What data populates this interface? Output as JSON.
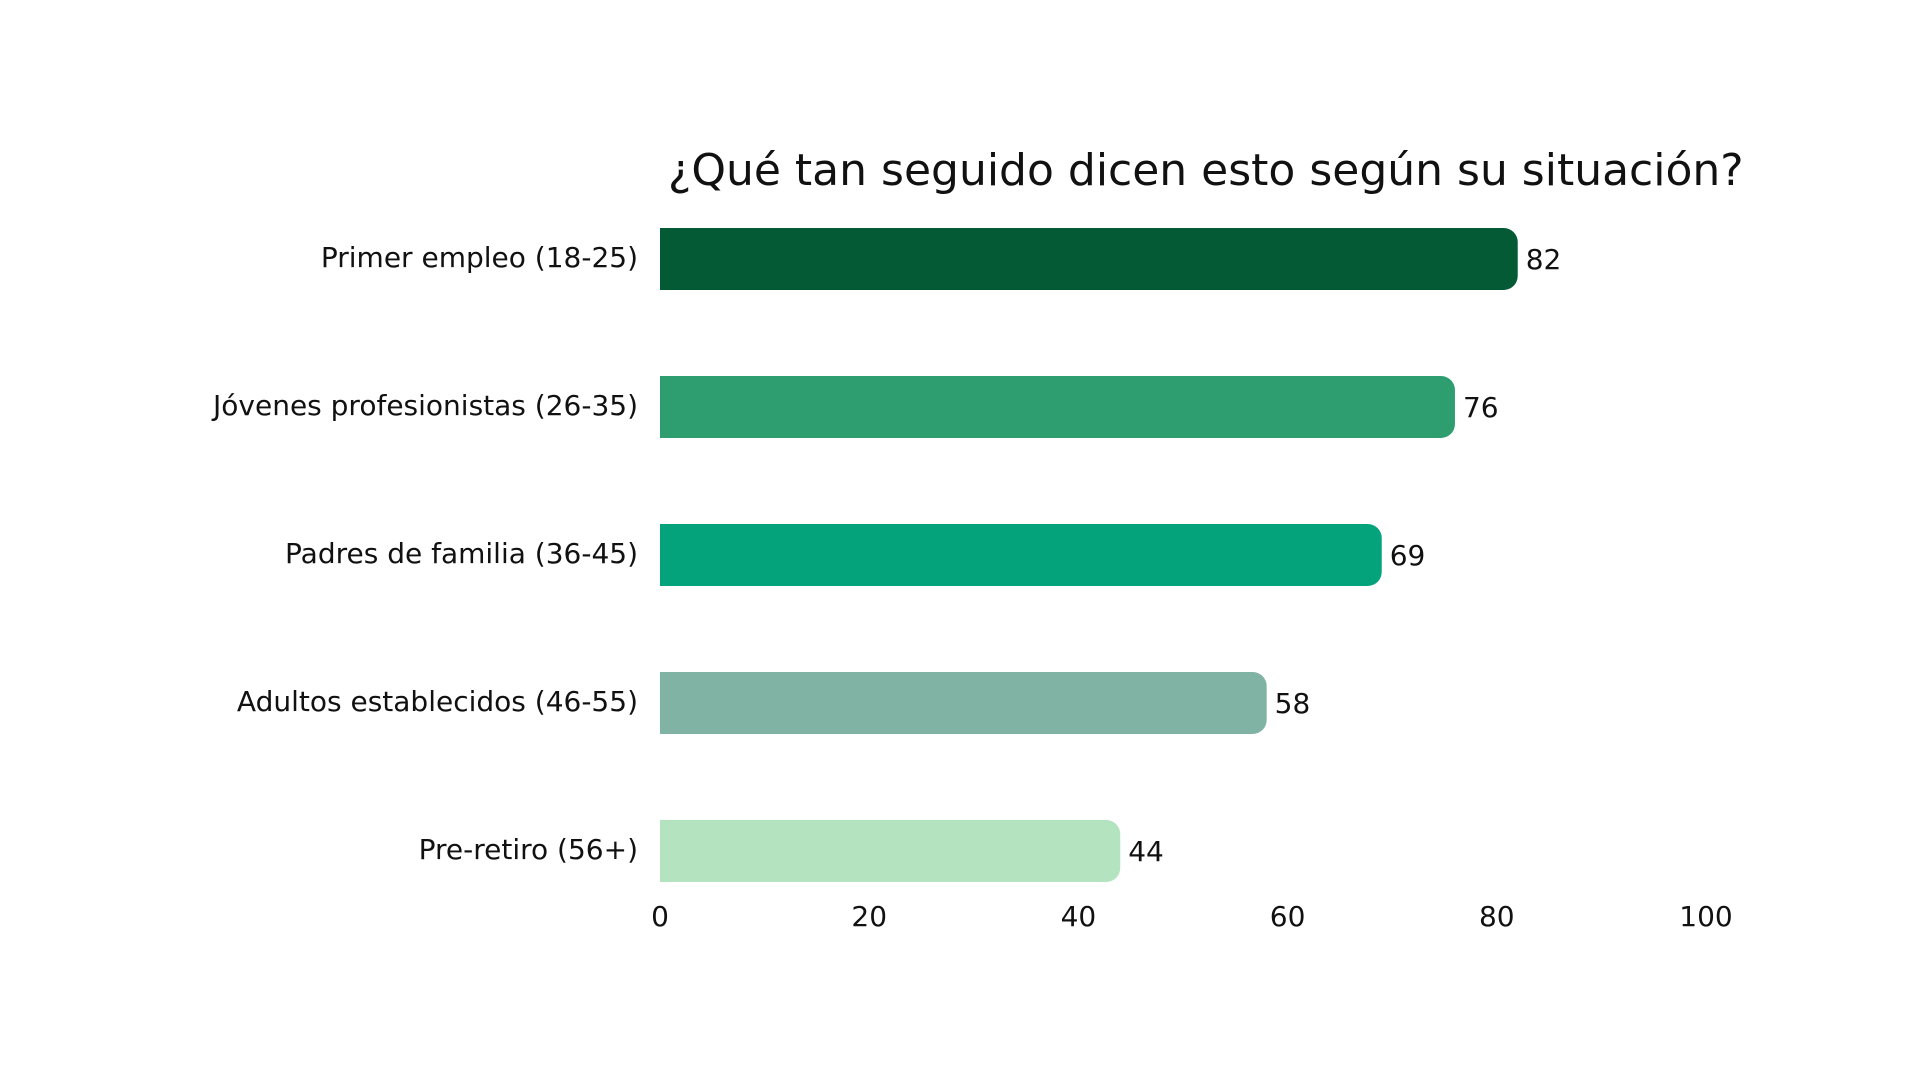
{
  "chart_data": {
    "type": "bar",
    "orientation": "horizontal",
    "title": "¿Qué tan seguido dicen esto según su situación?",
    "xlabel": "",
    "ylabel": "",
    "xlim": [
      0,
      100
    ],
    "xticks": [
      0,
      20,
      40,
      60,
      80,
      100
    ],
    "xtick_labels": [
      "0",
      "20",
      "40",
      "60",
      "80",
      "100"
    ],
    "grid": false,
    "legend": "none",
    "categories": [
      "Primer empleo (18-25)",
      "Jóvenes profesionistas (26-35)",
      "Padres de familia (36-45)",
      "Adultos establecidos (46-55)",
      "Pre-retiro (56+)"
    ],
    "values": [
      82,
      76,
      69,
      58,
      44
    ],
    "value_labels": [
      "82",
      "76",
      "69",
      "58",
      "44"
    ],
    "colors": [
      "#035a35",
      "#2e9e70",
      "#05a37c",
      "#80b3a3",
      "#b3e3bf"
    ]
  }
}
